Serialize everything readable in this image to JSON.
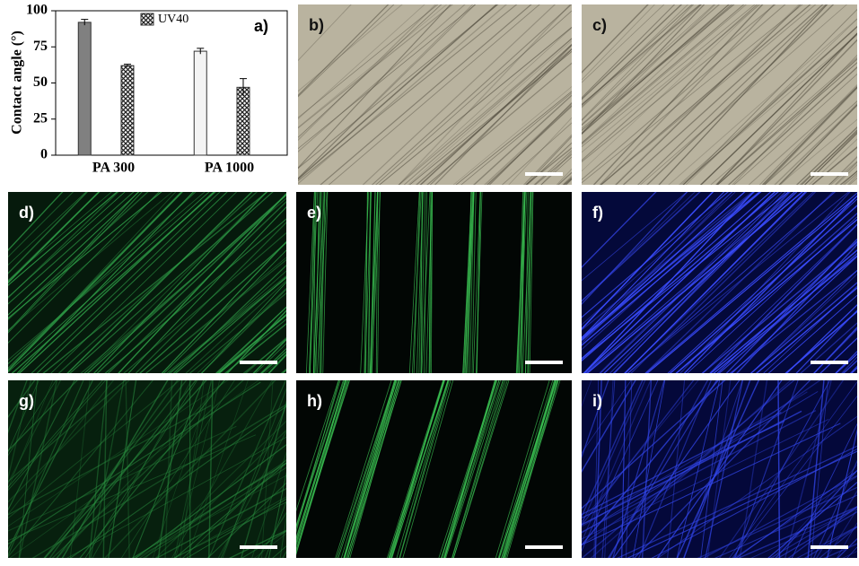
{
  "chart_data": {
    "type": "bar",
    "ylabel": "Contact  angle (°)",
    "panel_label": "a)",
    "categories": [
      "PA 300",
      "PA 1000"
    ],
    "series": [
      {
        "colors": [
          "#808080",
          "#f4f4f4"
        ],
        "values": [
          92,
          72
        ],
        "errors": [
          2,
          2
        ]
      },
      {
        "name": "UV40",
        "color": "hatch",
        "values": [
          62,
          47
        ],
        "errors": [
          1,
          6
        ]
      }
    ],
    "ylim": [
      0,
      100
    ],
    "yticks": [
      0,
      25,
      50,
      75,
      100
    ],
    "legend": "top"
  },
  "panels": [
    {
      "label": "b)",
      "style": "bright"
    },
    {
      "label": "c)",
      "style": "bright"
    },
    {
      "label": "d)",
      "style": "green"
    },
    {
      "label": "e)",
      "style": "green-stripes"
    },
    {
      "label": "f)",
      "style": "blue"
    },
    {
      "label": "g)",
      "style": "green-mesh"
    },
    {
      "label": "h)",
      "style": "green-stripes"
    },
    {
      "label": "i)",
      "style": "blue-mesh"
    }
  ]
}
